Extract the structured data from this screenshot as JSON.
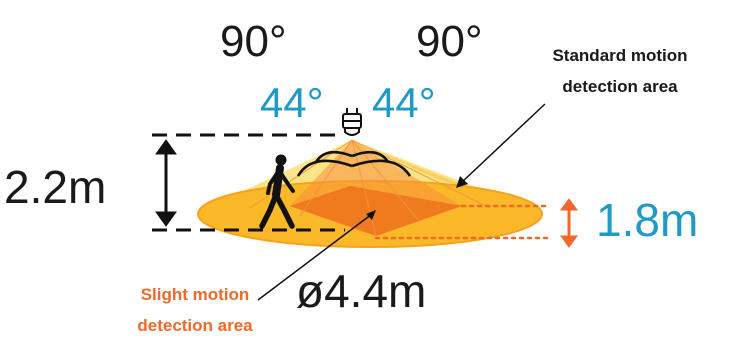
{
  "angles": {
    "outer_left": "90°",
    "outer_right": "90°",
    "inner_left": "44°",
    "inner_right": "44°"
  },
  "labels": {
    "standard_area_line1": "Standard motion",
    "standard_area_line2": "detection area",
    "slight_area_line1": "Slight motion",
    "slight_area_line2": "detection area"
  },
  "measurements": {
    "mount_height": "2.2m",
    "detection_height": "1.8m",
    "diameter": "ø4.4m"
  },
  "colors": {
    "outer_cone": "#FDE27A",
    "outer_disc": "#FBB829",
    "outer_disc_dark": "#F7A21B",
    "inner_cone": "#F6923A",
    "inner_area": "#F07A1E",
    "accent_blue": "#1F9AC8",
    "accent_orange": "#EE6A2A",
    "text_dark": "#1a1a1a"
  },
  "icons": {
    "sensor": "sensor-bulb-icon",
    "person": "walking-person-icon"
  }
}
